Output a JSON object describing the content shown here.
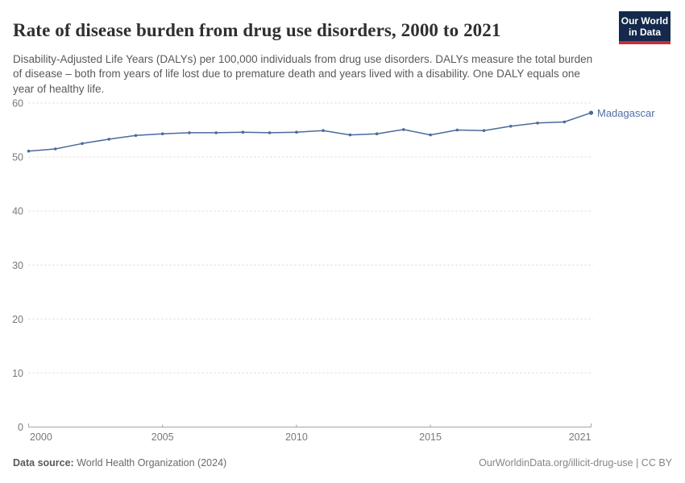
{
  "header": {
    "title": "Rate of disease burden from drug use disorders, 2000 to 2021",
    "subtitle": "Disability-Adjusted Life Years (DALYs) per 100,000 individuals from drug use disorders. DALYs measure the total burden of disease – both from years of life lost due to premature death and years lived with a disability. One DALY equals one year of healthy life.",
    "logo": {
      "line1": "Our World",
      "line2": "in Data"
    }
  },
  "chart_data": {
    "type": "line",
    "title": "Rate of disease burden from drug use disorders, 2000 to 2021",
    "series": [
      {
        "name": "Madagascar",
        "x": [
          2000,
          2001,
          2002,
          2003,
          2004,
          2005,
          2006,
          2007,
          2008,
          2009,
          2010,
          2011,
          2012,
          2013,
          2014,
          2015,
          2016,
          2017,
          2018,
          2019,
          2020,
          2021
        ],
        "values": [
          51.1,
          51.5,
          52.5,
          53.3,
          54.0,
          54.3,
          54.5,
          54.5,
          54.6,
          54.5,
          54.6,
          54.9,
          54.1,
          54.3,
          55.1,
          54.1,
          55.0,
          54.9,
          55.7,
          56.3,
          56.5,
          58.2
        ]
      }
    ],
    "series_label": "Madagascar",
    "xlabel": "",
    "ylabel": "",
    "xlim": [
      2000,
      2021
    ],
    "ylim": [
      0,
      60
    ],
    "yticks": [
      0,
      10,
      20,
      30,
      40,
      50,
      60
    ],
    "xticks": [
      2000,
      2005,
      2010,
      2015,
      2021
    ],
    "grid": "horizontal-dashed",
    "legend_position": "end-of-line-label",
    "line_color": "#4c6a9c",
    "label_color": "#4f6fa5",
    "axis_text_color": "#787878",
    "gridline_color": "#dadada",
    "axis_line_color": "#a3a3a3"
  },
  "footer": {
    "source_label": "Data source:",
    "source_value": " World Health Organization (2024)",
    "attribution": "OurWorldinData.org/illicit-drug-use | CC BY"
  }
}
